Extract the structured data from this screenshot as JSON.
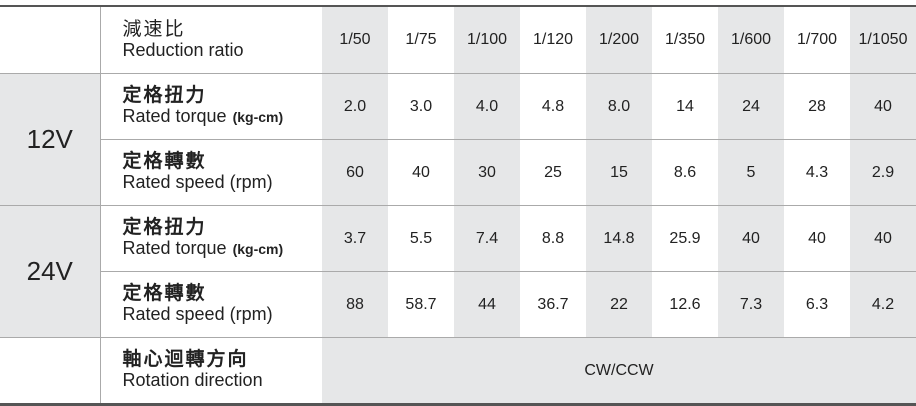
{
  "header": {
    "zh": "減速比",
    "en": "Reduction ratio",
    "ratios": [
      "1/50",
      "1/75",
      "1/100",
      "1/120",
      "1/200",
      "1/350",
      "1/600",
      "1/700",
      "1/1050"
    ]
  },
  "groups": [
    {
      "voltage": "12V",
      "rows": [
        {
          "zh": "定格扭力",
          "en": "Rated torque",
          "unit": "(kg-cm)",
          "values": [
            "2.0",
            "3.0",
            "4.0",
            "4.8",
            "8.0",
            "14",
            "24",
            "28",
            "40"
          ]
        },
        {
          "zh": "定格轉數",
          "en": "Rated speed (rpm)",
          "values": [
            "60",
            "40",
            "30",
            "25",
            "15",
            "8.6",
            "5",
            "4.3",
            "2.9"
          ]
        }
      ]
    },
    {
      "voltage": "24V",
      "rows": [
        {
          "zh": "定格扭力",
          "en": "Rated torque",
          "unit": "(kg-cm)",
          "values": [
            "3.7",
            "5.5",
            "7.4",
            "8.8",
            "14.8",
            "25.9",
            "40",
            "40",
            "40"
          ]
        },
        {
          "zh": "定格轉數",
          "en": "Rated speed (rpm)",
          "values": [
            "88",
            "58.7",
            "44",
            "36.7",
            "22",
            "12.6",
            "7.3",
            "6.3",
            "4.2"
          ]
        }
      ]
    }
  ],
  "rotation": {
    "zh": "軸心迴轉方向",
    "en": "Rotation direction",
    "value": "CW/CCW"
  }
}
